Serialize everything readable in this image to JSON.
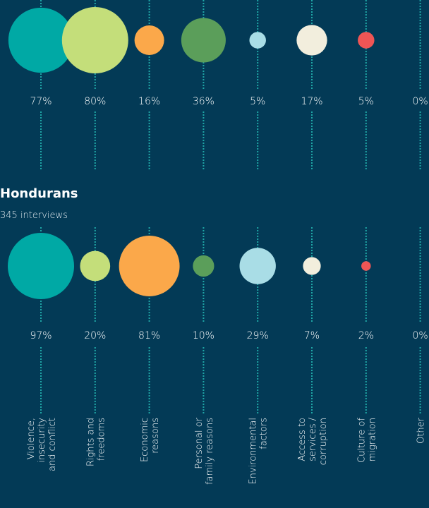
{
  "chart_data": [
    {
      "type": "bubble",
      "values": [
        77,
        80,
        16,
        36,
        5,
        17,
        5,
        0
      ],
      "value_labels": [
        "77%",
        "80%",
        "16%",
        "36%",
        "5%",
        "17%",
        "5%",
        "0%"
      ],
      "colors": [
        "#00a9a5",
        "#c4de7a",
        "#fba84a",
        "#5b9e5a",
        "#a9dde6",
        "#f2eedd",
        "#ef5555",
        "#1fa5a5"
      ]
    },
    {
      "type": "bubble",
      "title": "Hondurans",
      "subtitle": "345 interviews",
      "categories": [
        "Violence,\ninsecurity\nand conflict",
        "Rights and\nfreedoms",
        "Economic\nreasons",
        "Personal or\nfamily reasons",
        "Environmental\nfactors",
        "Access to\nservices /\ncorruption",
        "Culture of\nmigration",
        "Other"
      ],
      "values": [
        97,
        20,
        81,
        10,
        29,
        7,
        2,
        0
      ],
      "value_labels": [
        "97%",
        "20%",
        "81%",
        "10%",
        "29%",
        "7%",
        "2%",
        "0%"
      ],
      "colors": [
        "#00a9a5",
        "#c4de7a",
        "#fba84a",
        "#5b9e5a",
        "#a9dde6",
        "#f2eedd",
        "#ef5555",
        "#1fa5a5"
      ]
    }
  ]
}
